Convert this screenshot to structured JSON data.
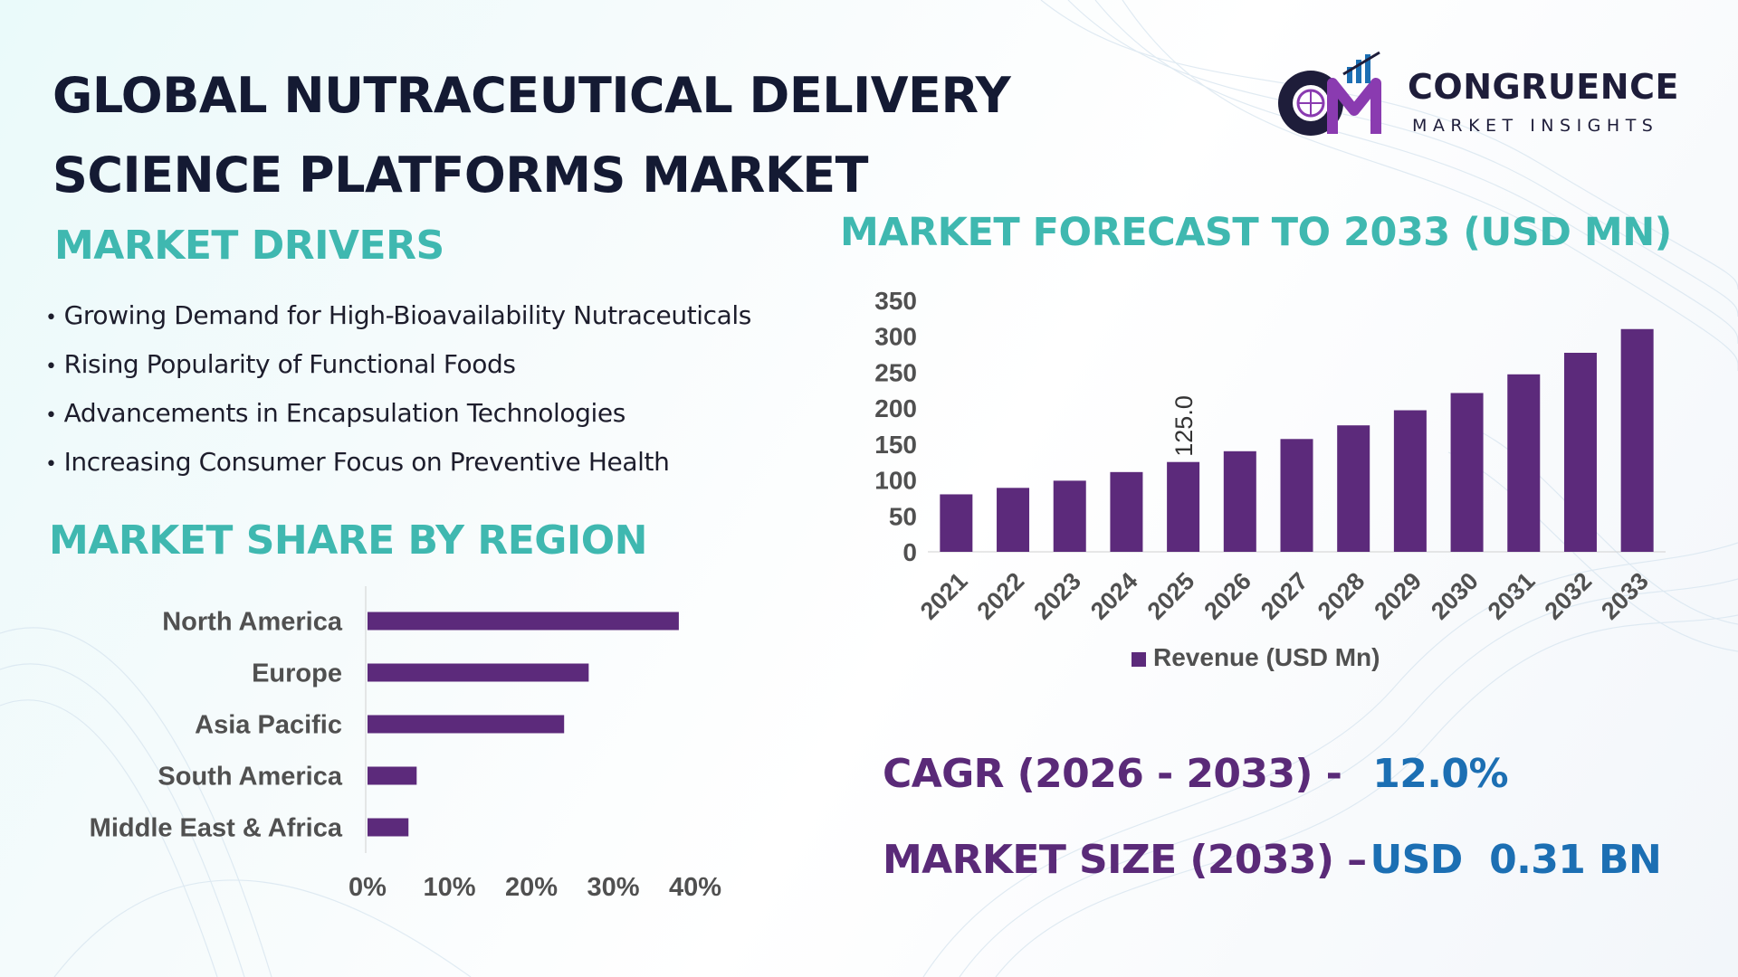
{
  "title": {
    "line1": "GLOBAL NUTRACEUTICAL DELIVERY",
    "line2": "SCIENCE PLATFORMS MARKET"
  },
  "logo": {
    "name": "CONGRUENCE",
    "subtitle": "MARKET INSIGHTS"
  },
  "drivers": {
    "heading": "MARKET DRIVERS",
    "items": [
      "Growing Demand for High-Bioavailability Nutraceuticals",
      "Rising Popularity of Functional Foods",
      "Advancements in Encapsulation Technologies",
      "Increasing Consumer Focus on Preventive Health"
    ]
  },
  "region": {
    "heading": "MARKET SHARE BY REGION"
  },
  "forecast": {
    "heading": "MARKET FORECAST TO 2033 (USD MN)"
  },
  "stats": {
    "cagr_label": "CAGR (2026 - 2033) -",
    "cagr_value": "12.0%",
    "size_label": "MARKET SIZE (2033) –",
    "size_value": "USD  0.31 BN"
  },
  "colors": {
    "bar": "#5c2a7b",
    "heading": "#3fb8b0",
    "title": "#141a33",
    "stat_label": "#5a2a78",
    "stat_value": "#1c6fb3"
  },
  "chart_data": [
    {
      "type": "bar",
      "orientation": "vertical",
      "categories": [
        "2021",
        "2022",
        "2023",
        "2024",
        "2025",
        "2026",
        "2027",
        "2028",
        "2029",
        "2030",
        "2031",
        "2032",
        "2033"
      ],
      "series": [
        {
          "name": "Revenue (USD Mn)",
          "values": [
            80,
            89,
            99,
            111,
            125.0,
            140,
            157,
            176,
            197,
            221,
            247,
            277,
            310
          ]
        }
      ],
      "data_labels": [
        {
          "category": "2025",
          "text": "125.0"
        }
      ],
      "yticks": [
        "0",
        "50",
        "100",
        "150",
        "200",
        "250",
        "300",
        "350"
      ],
      "ylim": [
        0,
        350
      ],
      "grid": false,
      "legend": "bottom"
    },
    {
      "type": "bar",
      "orientation": "horizontal",
      "categories": [
        "North America",
        "Europe",
        "Asia Pacific",
        "South America",
        "Middle East & Africa"
      ],
      "values": [
        38,
        27,
        24,
        6,
        5
      ],
      "xticks": [
        "0%",
        "10%",
        "20%",
        "30%",
        "40%"
      ],
      "xlim": [
        0,
        40
      ],
      "grid": false
    }
  ]
}
